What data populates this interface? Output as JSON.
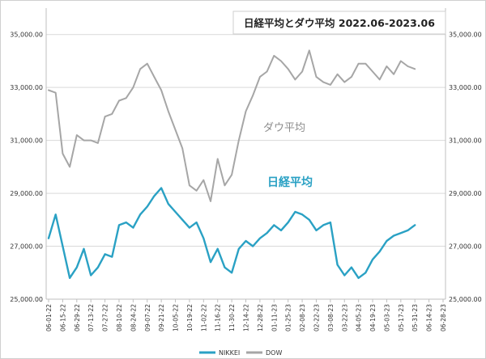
{
  "chart_data": {
    "type": "line",
    "title": "日経平均とダウ平均 2022.06-2023.06",
    "ylim": [
      25000,
      36000
    ],
    "y_ticks": [
      "25,000.00",
      "27,000.00",
      "29,000.00",
      "31,000.00",
      "33,000.00",
      "35,000.00"
    ],
    "y_tick_values": [
      25000,
      27000,
      29000,
      31000,
      33000,
      35000
    ],
    "x_ticks": [
      "06-01-22",
      "06-15-22",
      "06-29-22",
      "07-13-22",
      "07-27-22",
      "08-10-22",
      "08-24-22",
      "09-07-22",
      "09-21-22",
      "10-05-22",
      "10-19-22",
      "11-02-22",
      "11-16-22",
      "11-30-22",
      "12-14-22",
      "12-28-22",
      "01-11-23",
      "01-25-23",
      "02-08-23",
      "02-22-23",
      "03-08-23",
      "03-22-23",
      "04-05-23",
      "04-19-23",
      "05-03-23",
      "05-17-23",
      "05-31-23",
      "06-14-23",
      "06-28-23"
    ],
    "annotations": [
      {
        "text": "ダウ平均",
        "series": "DOW"
      },
      {
        "text": "日経平均",
        "series": "NIKKEI"
      }
    ],
    "grid": true,
    "legend": "bottom-center",
    "series": [
      {
        "name": "NIKKEI",
        "color": "#2aa1c4",
        "x_index": [
          0,
          1,
          2,
          3,
          4,
          5,
          6,
          7,
          8,
          9,
          10,
          11,
          12,
          13,
          14,
          15,
          16,
          17,
          18,
          19,
          20,
          21,
          22,
          23,
          24,
          25,
          26,
          27,
          28,
          29,
          30,
          31,
          32,
          33,
          34,
          35,
          36,
          37,
          38,
          39,
          40,
          41,
          42,
          43,
          44,
          45,
          46,
          47,
          48,
          49,
          50,
          51,
          52
        ],
        "values": [
          27300,
          28200,
          27000,
          25800,
          26200,
          26900,
          25900,
          26200,
          26700,
          26600,
          27800,
          27900,
          27700,
          28200,
          28500,
          28900,
          29200,
          28600,
          28300,
          28000,
          27700,
          27900,
          27300,
          26400,
          26900,
          26200,
          26000,
          26900,
          27200,
          27000,
          27300,
          27500,
          27800,
          27600,
          27900,
          28300,
          28200,
          28000,
          27600,
          27800,
          27900,
          26300,
          25900,
          26200,
          25800,
          26000,
          26500,
          26800,
          27200,
          27400,
          27500,
          27600,
          27800
        ]
      },
      {
        "name": "DOW",
        "color": "#a6a6a6",
        "x_index": [
          0,
          1,
          2,
          3,
          4,
          5,
          6,
          7,
          8,
          9,
          10,
          11,
          12,
          13,
          14,
          15,
          16,
          17,
          18,
          19,
          20,
          21,
          22,
          23,
          24,
          25,
          26,
          27,
          28,
          29,
          30,
          31,
          32,
          33,
          34,
          35,
          36,
          37,
          38,
          39,
          40,
          41,
          42,
          43,
          44,
          45,
          46,
          47,
          48,
          49,
          50,
          51,
          52
        ],
        "values": [
          32900,
          32800,
          30500,
          30000,
          31200,
          31000,
          31000,
          30900,
          31900,
          32000,
          32500,
          32600,
          33000,
          33700,
          33900,
          33400,
          32900,
          32100,
          31400,
          30700,
          29300,
          29100,
          29500,
          28700,
          30300,
          29300,
          29700,
          31000,
          32100,
          32700,
          33400,
          33600,
          34200,
          34000,
          33700,
          33300,
          33600,
          34400,
          33400,
          33200,
          33100,
          33500,
          33200,
          33400,
          33900,
          33900,
          33600,
          33300,
          33800,
          33500,
          34000,
          33800,
          33700
        ]
      }
    ]
  }
}
